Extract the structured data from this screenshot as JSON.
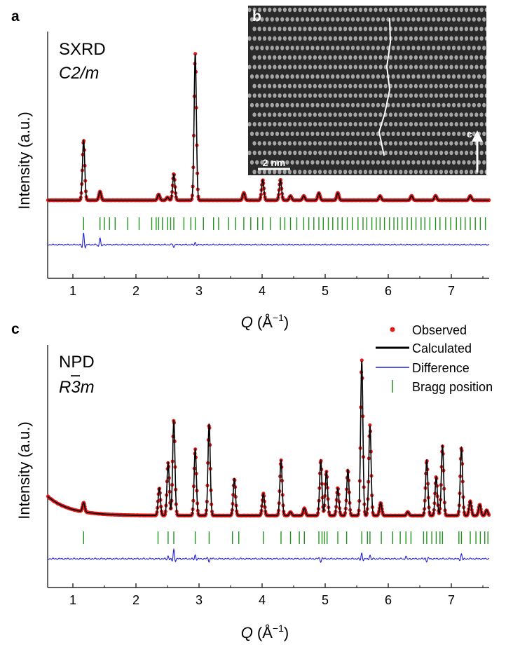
{
  "figure": {
    "panel_a_letter": "a",
    "panel_b_letter": "b",
    "panel_c_letter": "c",
    "inset": {
      "scale_bar_label": "2 nm",
      "arrow_label": "c",
      "colors": {
        "background": "#2a2a2a",
        "atom": "#d6d6d6",
        "trace": "#ffffff"
      }
    }
  },
  "chart_data": [
    {
      "type": "line",
      "panel": "a",
      "annotation_line1": "SXRD",
      "annotation_line2": "C2/m",
      "xlabel_symbol": "Q",
      "xlabel_unit": "(Å",
      "xlabel_exp": "−1",
      "xlabel_close": ")",
      "ylabel": "Intensity (a.u.)",
      "xlim": [
        0.6,
        7.6
      ],
      "xticks": [
        1,
        2,
        3,
        4,
        5,
        6,
        7
      ],
      "background": 0.05,
      "peaks": [
        {
          "q": 1.17,
          "h": 0.41
        },
        {
          "q": 1.43,
          "h": 0.06
        },
        {
          "q": 2.36,
          "h": 0.04
        },
        {
          "q": 2.5,
          "h": 0.02
        },
        {
          "q": 2.6,
          "h": 0.18
        },
        {
          "q": 2.94,
          "h": 1.0
        },
        {
          "q": 3.71,
          "h": 0.05
        },
        {
          "q": 4.01,
          "h": 0.14
        },
        {
          "q": 4.29,
          "h": 0.14
        },
        {
          "q": 4.45,
          "h": 0.03
        },
        {
          "q": 4.66,
          "h": 0.03
        },
        {
          "q": 4.9,
          "h": 0.05
        },
        {
          "q": 5.2,
          "h": 0.05
        },
        {
          "q": 5.87,
          "h": 0.03
        },
        {
          "q": 6.37,
          "h": 0.03
        },
        {
          "q": 6.75,
          "h": 0.03
        },
        {
          "q": 7.3,
          "h": 0.03
        }
      ],
      "bragg_positions": [
        1.17,
        1.43,
        1.5,
        1.58,
        1.67,
        1.87,
        2.05,
        2.25,
        2.32,
        2.36,
        2.42,
        2.5,
        2.55,
        2.6,
        2.76,
        2.87,
        2.94,
        3.07,
        3.23,
        3.31,
        3.47,
        3.58,
        3.71,
        3.82,
        3.93,
        4.01,
        4.13,
        4.29,
        4.36,
        4.45,
        4.55,
        4.66,
        4.74,
        4.82,
        4.9,
        4.97,
        5.05,
        5.12,
        5.2,
        5.27,
        5.35,
        5.43,
        5.52,
        5.6,
        5.66,
        5.74,
        5.81,
        5.87,
        5.94,
        6.02,
        6.09,
        6.15,
        6.22,
        6.3,
        6.37,
        6.44,
        6.52,
        6.58,
        6.66,
        6.75,
        6.82,
        6.91,
        6.99,
        7.08,
        7.15,
        7.22,
        7.3,
        7.38,
        7.46,
        7.54
      ],
      "difference_features": [
        {
          "q": 1.17,
          "d": 0.08
        },
        {
          "q": 1.43,
          "d": 0.05
        },
        {
          "q": 2.6,
          "d": -0.02
        },
        {
          "q": 2.94,
          "d": 0.015
        }
      ],
      "colors": {
        "observed": "#e8191a",
        "calculated": "#000000",
        "difference": "#1f1fd6",
        "bragg": "#22921f"
      }
    },
    {
      "type": "line",
      "panel": "c",
      "annotation_line1": "NPD",
      "annotation_line2": "R3m",
      "xlabel_symbol": "Q",
      "xlabel_unit": "(Å",
      "xlabel_exp": "−1",
      "xlabel_close": ")",
      "ylabel": "Intensity (a.u.)",
      "xlim": [
        0.6,
        7.6
      ],
      "xticks": [
        1,
        2,
        3,
        4,
        5,
        6,
        7
      ],
      "legend": [
        "Observed",
        "Calculated",
        "Difference",
        "Bragg position"
      ],
      "legend_position": "top-right",
      "background_start": 0.13,
      "background_end": 0.025,
      "peaks": [
        {
          "q": 1.17,
          "h": 0.05
        },
        {
          "q": 2.37,
          "h": 0.15
        },
        {
          "q": 2.51,
          "h": 0.29
        },
        {
          "q": 2.6,
          "h": 0.52
        },
        {
          "q": 2.94,
          "h": 0.36
        },
        {
          "q": 3.16,
          "h": 0.5
        },
        {
          "q": 3.56,
          "h": 0.2
        },
        {
          "q": 4.02,
          "h": 0.12
        },
        {
          "q": 4.3,
          "h": 0.3
        },
        {
          "q": 4.45,
          "h": 0.02
        },
        {
          "q": 4.67,
          "h": 0.04
        },
        {
          "q": 4.93,
          "h": 0.3
        },
        {
          "q": 5.02,
          "h": 0.24
        },
        {
          "q": 5.2,
          "h": 0.15
        },
        {
          "q": 5.36,
          "h": 0.25
        },
        {
          "q": 5.58,
          "h": 0.84
        },
        {
          "q": 5.71,
          "h": 0.49
        },
        {
          "q": 5.88,
          "h": 0.07
        },
        {
          "q": 6.31,
          "h": 0.02
        },
        {
          "q": 6.61,
          "h": 0.3
        },
        {
          "q": 6.76,
          "h": 0.21
        },
        {
          "q": 6.86,
          "h": 0.38
        },
        {
          "q": 7.16,
          "h": 0.37
        },
        {
          "q": 7.3,
          "h": 0.08
        },
        {
          "q": 7.45,
          "h": 0.06
        },
        {
          "q": 7.56,
          "h": 0.03
        }
      ],
      "bragg_positions": [
        1.17,
        2.35,
        2.51,
        2.6,
        2.94,
        3.16,
        3.53,
        3.63,
        4.02,
        4.3,
        4.45,
        4.59,
        4.67,
        4.9,
        4.95,
        4.99,
        5.03,
        5.2,
        5.34,
        5.58,
        5.67,
        5.71,
        5.89,
        6.07,
        6.19,
        6.28,
        6.36,
        6.56,
        6.61,
        6.69,
        6.76,
        6.82,
        6.86,
        7.12,
        7.16,
        7.3,
        7.39,
        7.46,
        7.53,
        7.58
      ],
      "difference_features": [
        {
          "q": 2.51,
          "d": 0.015
        },
        {
          "q": 2.6,
          "d": 0.05
        },
        {
          "q": 2.94,
          "d": 0.02
        },
        {
          "q": 3.16,
          "d": -0.015
        },
        {
          "q": 4.93,
          "d": -0.015
        },
        {
          "q": 5.58,
          "d": 0.03
        },
        {
          "q": 5.71,
          "d": 0.02
        },
        {
          "q": 6.28,
          "d": 0.015
        },
        {
          "q": 6.61,
          "d": -0.015
        },
        {
          "q": 7.16,
          "d": 0.025
        }
      ],
      "colors": {
        "observed": "#e8191a",
        "calculated": "#000000",
        "difference": "#1f1fd6",
        "bragg": "#22921f"
      }
    }
  ]
}
